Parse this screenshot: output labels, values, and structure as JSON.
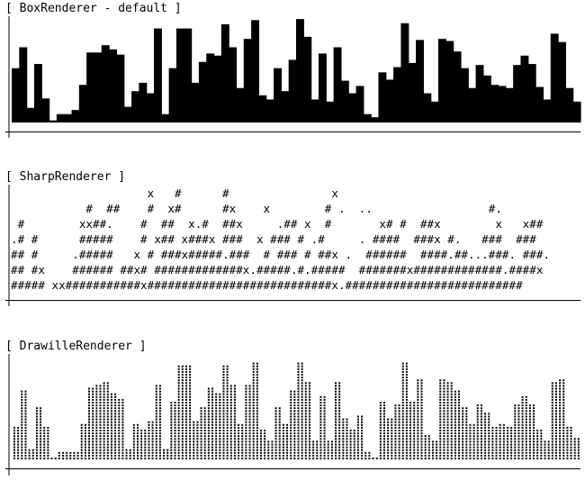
{
  "panels": [
    {
      "title": "[ BoxRenderer - default ]"
    },
    {
      "title": "[ SharpRenderer ]"
    },
    {
      "title": "[ DrawilleRenderer ]"
    }
  ],
  "sharp_rows": [
    "                    x   #      #               x",
    "           #  ##    #  x#      #x    x        # .  ..                 #.",
    " #        xx##.    #  ##  x.#  ##x     .## x  #       x# #  ##x        x   x##",
    ".# #      #####    # x## x###x ###  x ### # .#     . ####  ###x #.   ###  ###",
    "## #     .#####   x # ###x#####.###  # ### # ##x .  ######  ####.##...###. ###.",
    "## #x    ###### ##x# #############x.#####.#.#####  #######x#############.####x",
    "##### xx###########x###########################x.##########################"
  ],
  "chart_data": [
    {
      "type": "bar",
      "title": "[ BoxRenderer - default ]",
      "values": [
        0.52,
        0.72,
        0.14,
        0.56,
        0.23,
        0.02,
        0.08,
        0.08,
        0.12,
        0.36,
        0.67,
        0.67,
        0.74,
        0.7,
        0.65,
        0.15,
        0.3,
        0.38,
        0.28,
        0.9,
        0.08,
        0.52,
        0.9,
        0.9,
        0.38,
        0.58,
        0.66,
        0.64,
        0.94,
        0.72,
        0.33,
        0.8,
        0.98,
        0.26,
        0.22,
        0.52,
        0.3,
        0.6,
        0.99,
        0.82,
        0.22,
        0.66,
        0.2,
        0.72,
        0.4,
        0.28,
        0.35,
        0.08,
        0.05,
        0.48,
        0.41,
        0.53,
        0.95,
        0.57,
        0.79,
        0.28,
        0.2,
        0.8,
        0.78,
        0.68,
        0.52,
        0.33,
        0.55,
        0.45,
        0.36,
        0.35,
        0.33,
        0.55,
        0.64,
        0.56,
        0.34,
        0.22,
        0.85,
        0.77,
        0.33,
        0.2
      ]
    },
    {
      "type": "bar",
      "title": "[ DrawilleRenderer ]",
      "values": [
        0.33,
        0.69,
        0.1,
        0.53,
        0.33,
        0.02,
        0.09,
        0.09,
        0.08,
        0.36,
        0.71,
        0.73,
        0.76,
        0.66,
        0.59,
        0.12,
        0.35,
        0.29,
        0.39,
        0.75,
        0.1,
        0.57,
        0.93,
        0.93,
        0.38,
        0.53,
        0.7,
        0.67,
        0.94,
        0.73,
        0.35,
        0.75,
        0.97,
        0.3,
        0.18,
        0.53,
        0.35,
        0.68,
        0.96,
        0.78,
        0.19,
        0.62,
        0.18,
        0.77,
        0.4,
        0.3,
        0.43,
        0.09,
        0.03,
        0.58,
        0.41,
        0.55,
        0.97,
        0.57,
        0.79,
        0.25,
        0.2,
        0.8,
        0.78,
        0.68,
        0.52,
        0.36,
        0.55,
        0.47,
        0.34,
        0.36,
        0.32,
        0.54,
        0.64,
        0.56,
        0.31,
        0.18,
        0.78,
        0.79,
        0.33,
        0.22
      ]
    }
  ]
}
